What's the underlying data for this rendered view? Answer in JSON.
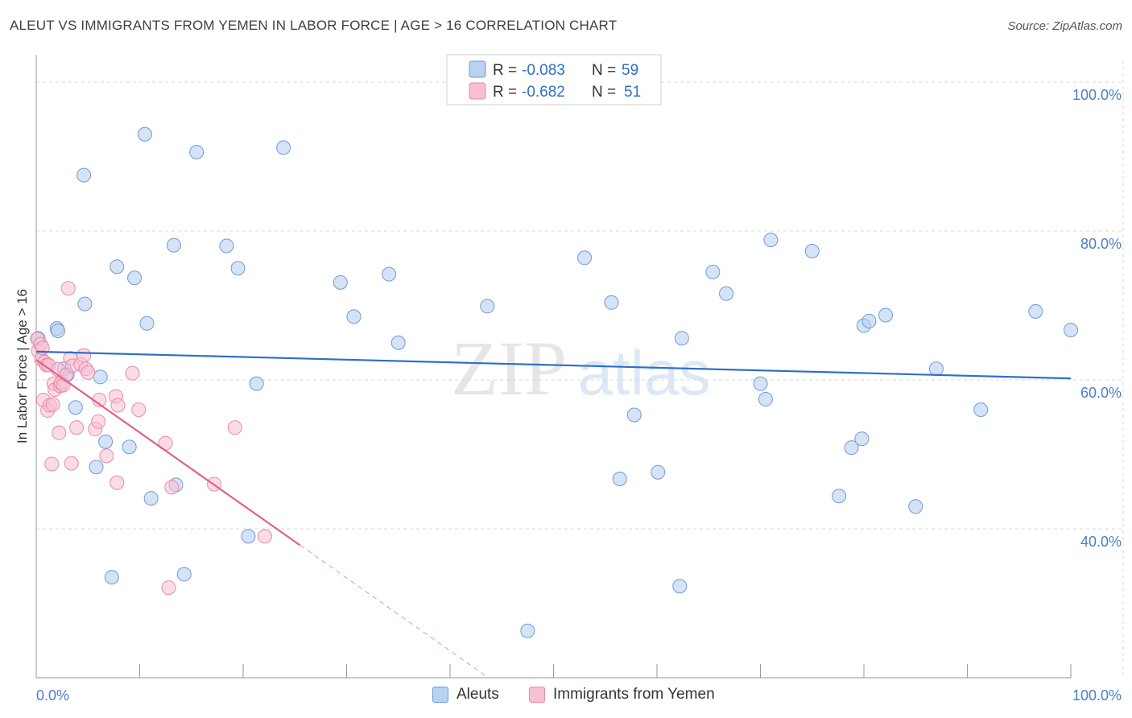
{
  "title": "ALEUT VS IMMIGRANTS FROM YEMEN IN LABOR FORCE | AGE > 16 CORRELATION CHART",
  "source": "Source: ZipAtlas.com",
  "watermark": {
    "zip": "ZIP",
    "atlas": "atlas"
  },
  "colors": {
    "aleut_fill": "#b9d1f2",
    "aleut_stroke": "#6f9bd8",
    "aleut_line": "#2e6fc9",
    "yemen_fill": "#f7bfd1",
    "yemen_stroke": "#e88aa8",
    "yemen_line": "#e0608f",
    "axis_text": "#4a7fc9",
    "grid": "#d9d9d9"
  },
  "legend_top": {
    "rows": [
      {
        "r_label": "R =",
        "r_value": "-0.083",
        "n_label": "N =",
        "n_value": "59"
      },
      {
        "r_label": "R =",
        "r_value": "-0.682",
        "n_label": "N =",
        "n_value": "51"
      }
    ]
  },
  "legend_bottom": [
    "Aleuts",
    "Immigrants from Yemen"
  ],
  "chart_data": {
    "type": "scatter",
    "xlabel": "",
    "ylabel": "In Labor Force | Age > 16",
    "xlim": [
      0,
      100
    ],
    "ylim": [
      20,
      104
    ],
    "x_tick_labels": [
      "0.0%",
      "100.0%"
    ],
    "y_ticks": [
      40,
      60,
      80,
      100
    ],
    "y_tick_labels": [
      "40.0%",
      "60.0%",
      "80.0%",
      "100.0%"
    ],
    "grid": true,
    "series": [
      {
        "name": "Aleuts",
        "trend": {
          "x": [
            0,
            100
          ],
          "y": [
            63.8,
            60.2
          ]
        },
        "points": [
          [
            0.2,
            65.6
          ],
          [
            2.0,
            66.9
          ],
          [
            2.1,
            66.6
          ],
          [
            2.7,
            61.5
          ],
          [
            3.0,
            60.7
          ],
          [
            3.8,
            56.3
          ],
          [
            4.6,
            87.5
          ],
          [
            4.7,
            70.2
          ],
          [
            5.8,
            48.3
          ],
          [
            6.2,
            60.4
          ],
          [
            6.7,
            51.7
          ],
          [
            7.3,
            33.5
          ],
          [
            7.8,
            75.2
          ],
          [
            9.0,
            51.0
          ],
          [
            9.5,
            73.7
          ],
          [
            10.5,
            93.0
          ],
          [
            10.7,
            67.6
          ],
          [
            11.1,
            44.1
          ],
          [
            13.5,
            45.9
          ],
          [
            13.3,
            78.1
          ],
          [
            14.3,
            33.9
          ],
          [
            15.5,
            90.6
          ],
          [
            18.4,
            78.0
          ],
          [
            19.5,
            75.0
          ],
          [
            20.5,
            39.0
          ],
          [
            21.3,
            59.5
          ],
          [
            23.9,
            91.2
          ],
          [
            29.4,
            73.1
          ],
          [
            30.7,
            68.5
          ],
          [
            34.1,
            74.2
          ],
          [
            35.0,
            65.0
          ],
          [
            43.6,
            69.9
          ],
          [
            47.5,
            26.3
          ],
          [
            53.0,
            76.4
          ],
          [
            55.6,
            70.4
          ],
          [
            56.4,
            46.7
          ],
          [
            57.8,
            55.3
          ],
          [
            60.1,
            47.6
          ],
          [
            62.2,
            32.3
          ],
          [
            62.4,
            65.6
          ],
          [
            65.4,
            74.5
          ],
          [
            66.7,
            71.6
          ],
          [
            70.0,
            59.5
          ],
          [
            70.5,
            57.4
          ],
          [
            71.0,
            78.8
          ],
          [
            75.0,
            77.3
          ],
          [
            77.6,
            44.4
          ],
          [
            78.8,
            50.9
          ],
          [
            79.8,
            52.1
          ],
          [
            80.0,
            67.3
          ],
          [
            80.5,
            67.9
          ],
          [
            82.1,
            68.7
          ],
          [
            85.0,
            43.0
          ],
          [
            87.0,
            61.5
          ],
          [
            91.3,
            56.0
          ],
          [
            96.6,
            69.2
          ],
          [
            100.0,
            66.7
          ]
        ]
      },
      {
        "name": "Immigrants from Yemen",
        "trend": {
          "x": [
            0,
            25.5
          ],
          "y": [
            62.7,
            37.8
          ]
        },
        "trend_ext": {
          "x": [
            25.5,
            43.5
          ],
          "y": [
            37.8,
            20.2
          ]
        },
        "points": [
          [
            0.1,
            65.5
          ],
          [
            0.2,
            63.9
          ],
          [
            0.4,
            64.8
          ],
          [
            0.5,
            62.8
          ],
          [
            0.6,
            64.3
          ],
          [
            0.7,
            57.3
          ],
          [
            0.8,
            62.4
          ],
          [
            1.0,
            62.0
          ],
          [
            1.1,
            55.9
          ],
          [
            1.3,
            56.6
          ],
          [
            1.2,
            62.0
          ],
          [
            1.5,
            48.7
          ],
          [
            1.6,
            56.7
          ],
          [
            1.7,
            59.5
          ],
          [
            1.8,
            58.7
          ],
          [
            2.1,
            61.4
          ],
          [
            2.2,
            52.9
          ],
          [
            2.3,
            59.2
          ],
          [
            2.4,
            59.6
          ],
          [
            2.6,
            59.3
          ],
          [
            2.9,
            60.7
          ],
          [
            3.1,
            72.3
          ],
          [
            3.3,
            62.9
          ],
          [
            3.4,
            48.8
          ],
          [
            3.5,
            61.9
          ],
          [
            3.9,
            53.6
          ],
          [
            4.3,
            62.1
          ],
          [
            4.6,
            63.3
          ],
          [
            4.8,
            61.5
          ],
          [
            5.0,
            61.0
          ],
          [
            5.7,
            53.4
          ],
          [
            6.0,
            54.4
          ],
          [
            6.1,
            57.3
          ],
          [
            6.8,
            49.8
          ],
          [
            7.7,
            57.8
          ],
          [
            7.8,
            46.2
          ],
          [
            7.9,
            56.6
          ],
          [
            9.3,
            60.9
          ],
          [
            9.9,
            56.0
          ],
          [
            12.5,
            51.5
          ],
          [
            12.8,
            32.1
          ],
          [
            13.1,
            45.6
          ],
          [
            17.2,
            46.0
          ],
          [
            19.2,
            53.6
          ],
          [
            22.1,
            39.0
          ]
        ]
      }
    ]
  }
}
